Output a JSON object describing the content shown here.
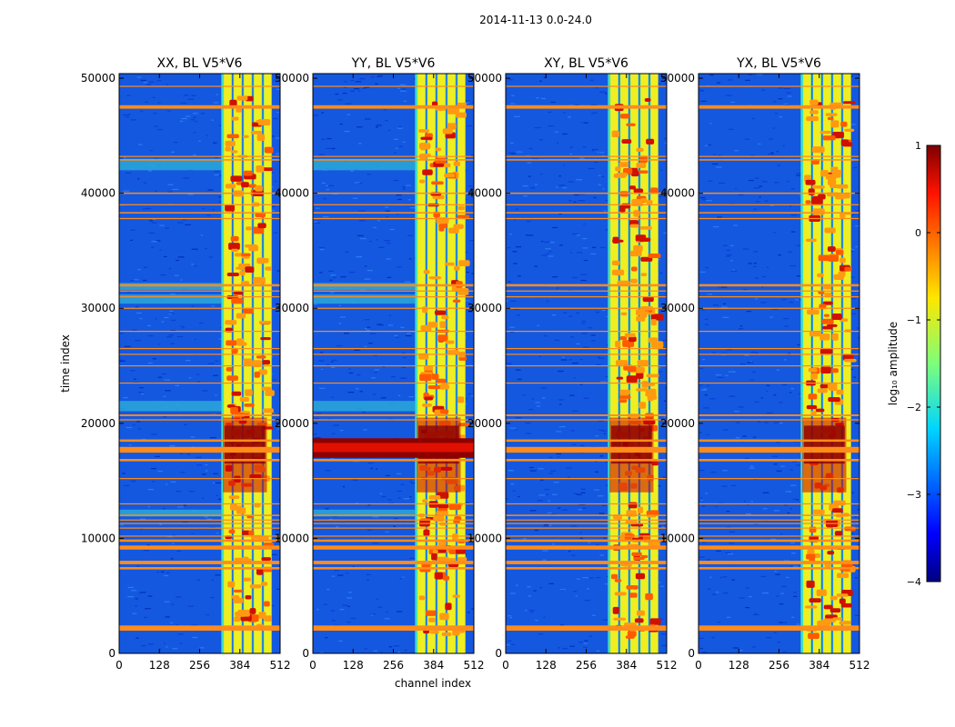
{
  "figure": {
    "title": "2014-11-13 0.0-24.0"
  },
  "chart_data": [
    {
      "type": "heatmap",
      "title": "XX, BL V5*V6",
      "xlabel": "channel index",
      "ylabel": "time index",
      "xlim": [
        0,
        512
      ],
      "ylim": [
        0,
        50400
      ],
      "xticks": [
        0,
        128,
        256,
        384,
        512
      ],
      "yticks": [
        0,
        10000,
        20000,
        30000,
        40000,
        50000
      ],
      "rfi_band_channels": [
        325,
        475
      ],
      "notes": "broadband RFI rows across all channels; strong burst near 16000-20000"
    },
    {
      "type": "heatmap",
      "title": "YY, BL V5*V6",
      "xlabel": "channel index",
      "ylabel": "",
      "xlim": [
        0,
        512
      ],
      "ylim": [
        0,
        50400
      ],
      "xticks": [
        0,
        128,
        256,
        384,
        512
      ],
      "yticks": [
        0,
        10000,
        20000,
        30000,
        40000,
        50000
      ],
      "rfi_band_channels": [
        325,
        475
      ],
      "notes": "dark red broadband band near 17500-18500"
    },
    {
      "type": "heatmap",
      "title": "XY, BL V5*V6",
      "xlabel": "",
      "ylabel": "",
      "xlim": [
        0,
        512
      ],
      "ylim": [
        0,
        50400
      ],
      "xticks": [
        0,
        128,
        256,
        384,
        512
      ],
      "yticks": [
        0,
        10000,
        20000,
        30000,
        40000,
        50000
      ],
      "rfi_band_channels": [
        325,
        475
      ],
      "notes": ""
    },
    {
      "type": "heatmap",
      "title": "YX, BL V5*V6",
      "xlabel": "",
      "ylabel": "",
      "xlim": [
        0,
        512
      ],
      "ylim": [
        0,
        50400
      ],
      "xticks": [
        0,
        128,
        256,
        384,
        512
      ],
      "yticks": [
        0,
        10000,
        20000,
        30000,
        40000,
        50000
      ],
      "rfi_band_channels": [
        325,
        475
      ],
      "notes": ""
    }
  ],
  "colorbar": {
    "label": "log₁₀ amplitude",
    "min": -4,
    "max": 1,
    "ticks": [
      "1",
      "0",
      "−1",
      "−2",
      "−3",
      "−4"
    ],
    "colormap": "jet"
  },
  "colors": {
    "background_low": "#1458e0",
    "rfi_row": "#ff8c1a",
    "strong": "#8b0000"
  }
}
